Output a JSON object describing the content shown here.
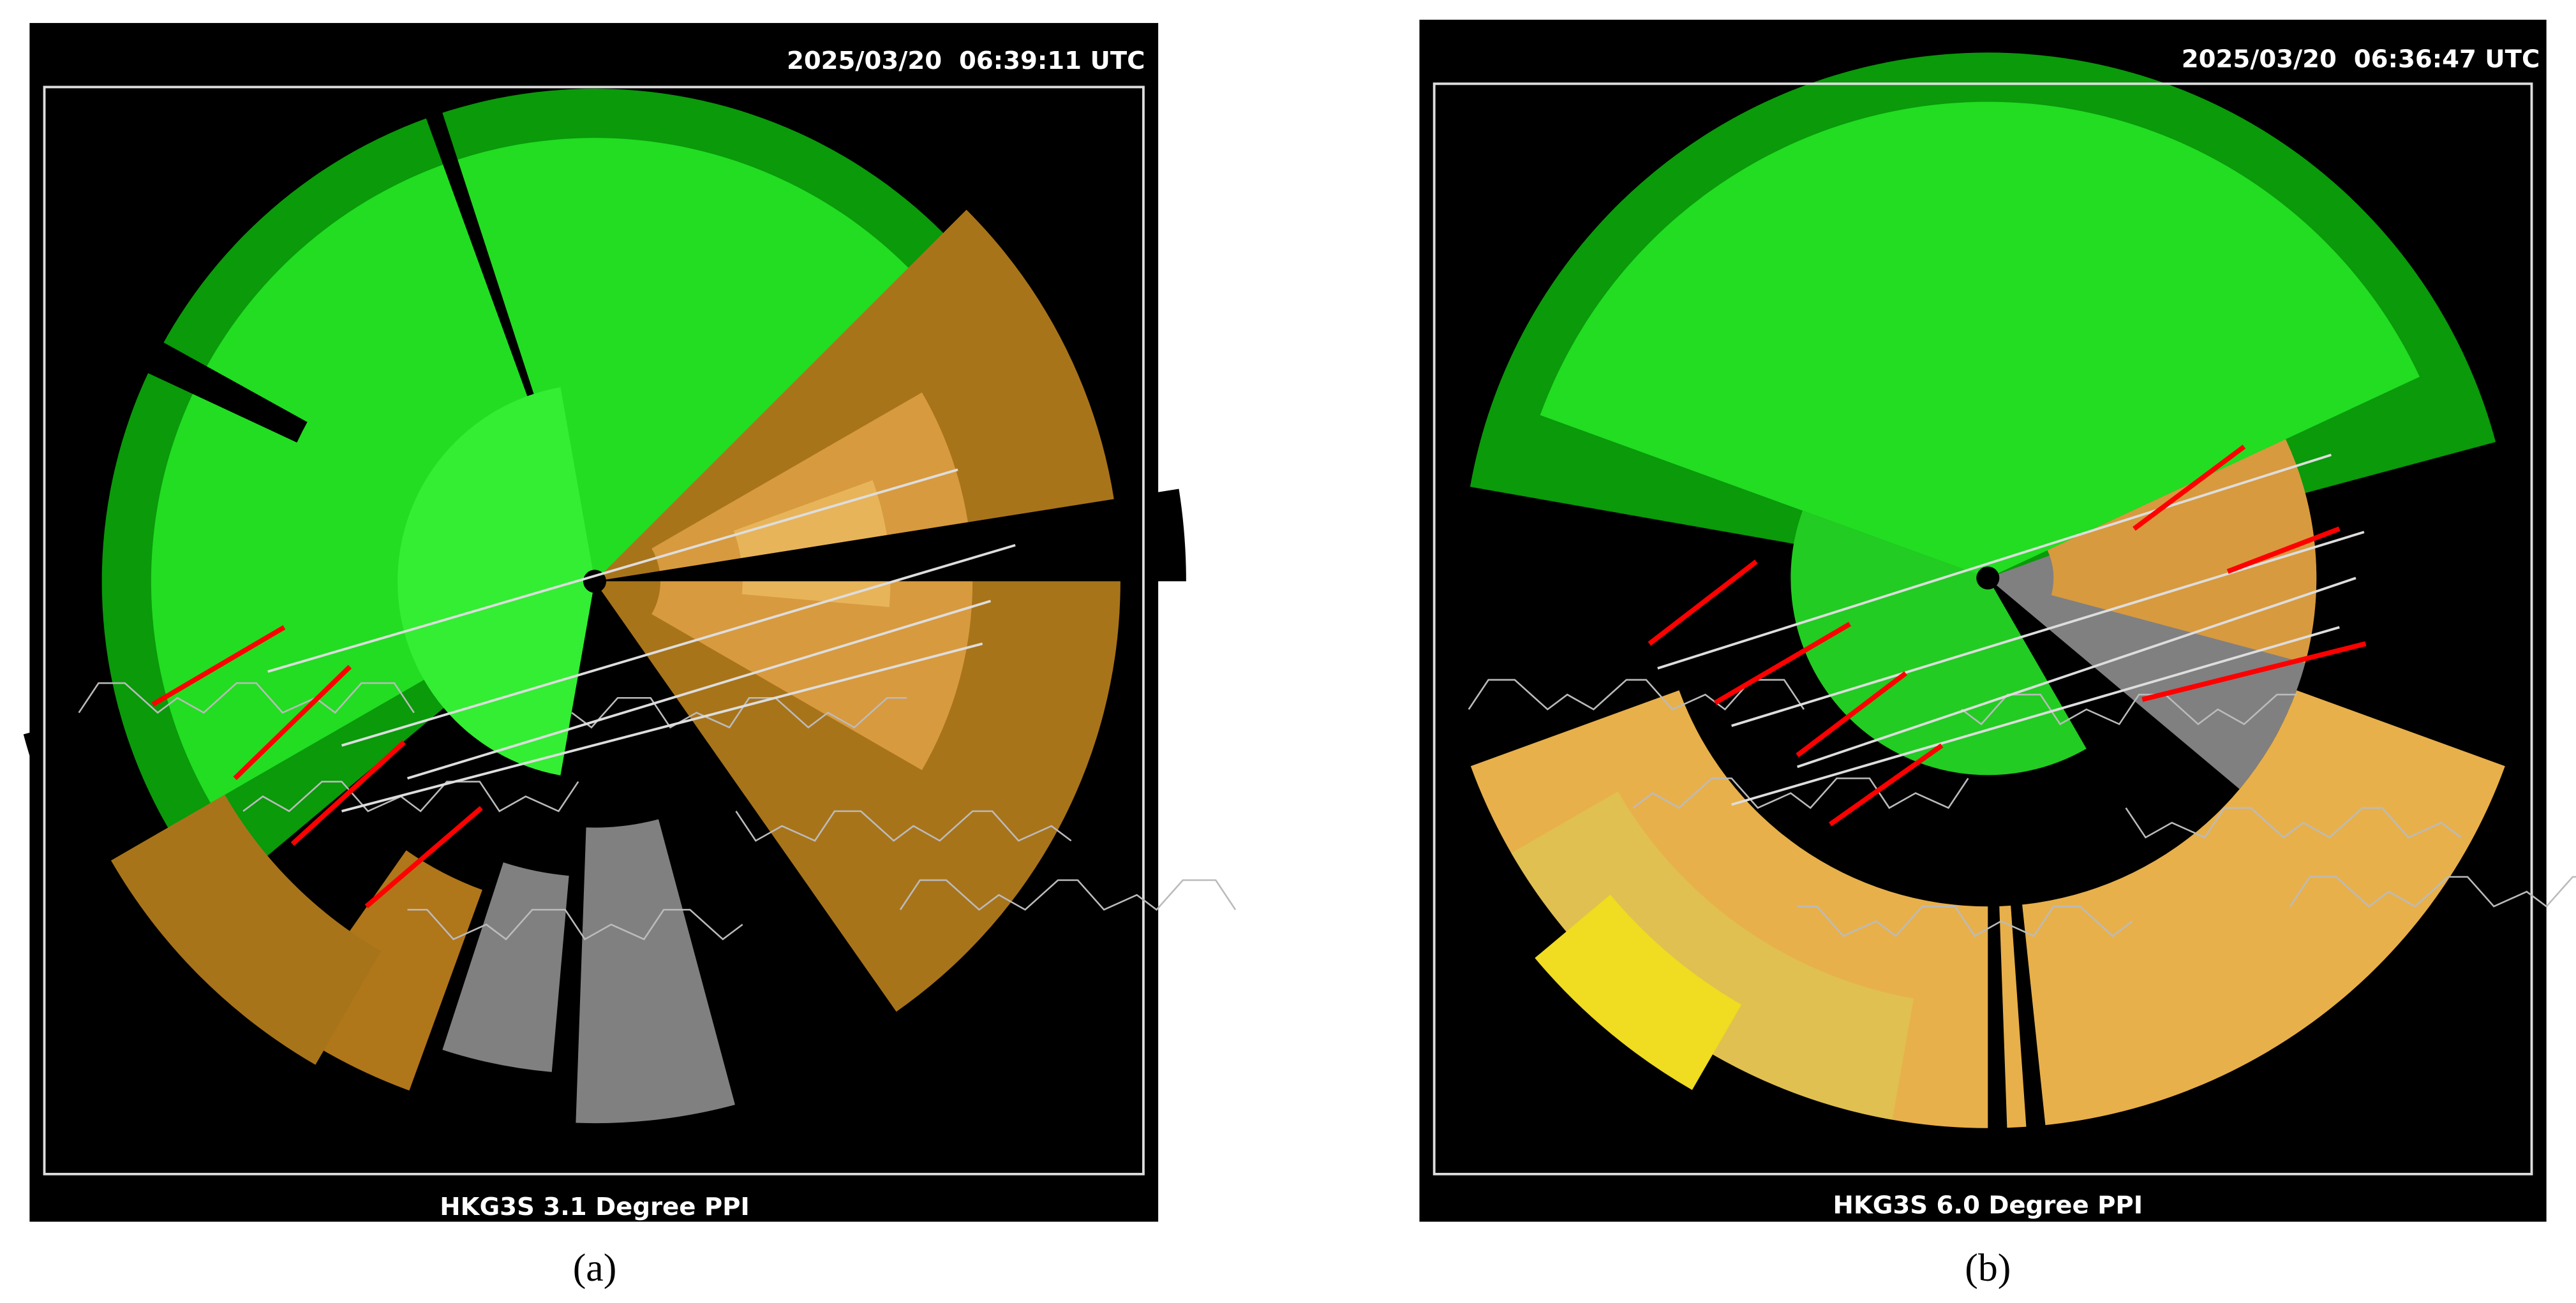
{
  "panels": [
    {
      "timestamp": "2025/03/20  06:39:11 UTC",
      "caption": "HKG3S 3.1 Degree PPI",
      "label": "(a)"
    },
    {
      "timestamp": "2025/03/20  06:36:47 UTC",
      "caption": "HKG3S 6.0 Degree PPI",
      "label": "(b)"
    }
  ]
}
